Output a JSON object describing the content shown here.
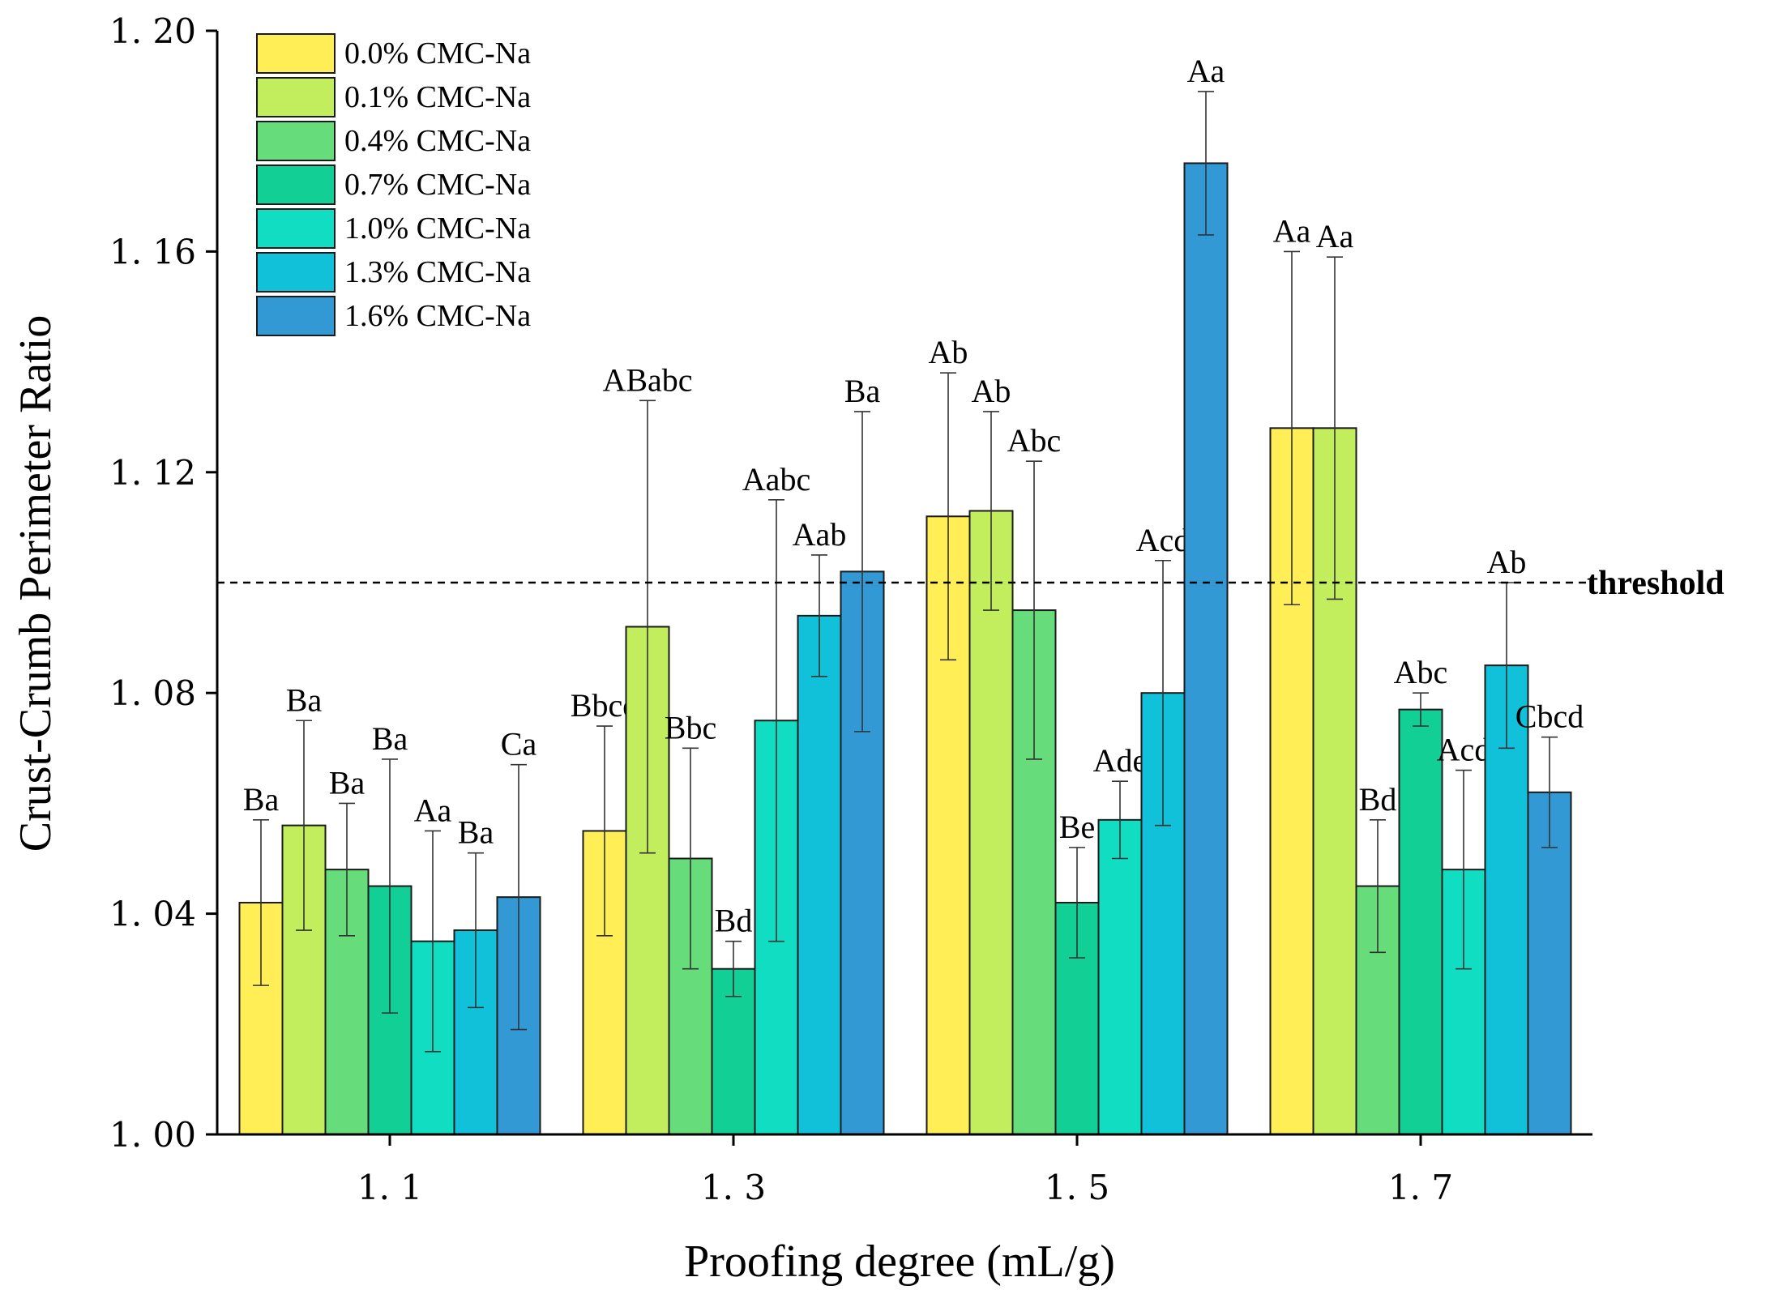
{
  "chart_data": {
    "type": "bar",
    "title": "",
    "xlabel": "Proofing degree (mL/g)",
    "ylabel": "Crust-Crumb Perimeter Ratio",
    "ylim": [
      1.0,
      1.2
    ],
    "yticks": [
      "1. 00",
      "1. 04",
      "1. 08",
      "1. 12",
      "1. 16",
      "1. 20"
    ],
    "ytick_values": [
      1.0,
      1.04,
      1.08,
      1.12,
      1.16,
      1.2
    ],
    "categories": [
      "1. 1",
      "1. 3",
      "1. 5",
      "1. 7"
    ],
    "grid": false,
    "legend_position": "top-left",
    "threshold": {
      "value": 1.1,
      "label": "threshold",
      "color": "#000000"
    },
    "series": [
      {
        "name": "0.0% CMC-Na",
        "color": "#FFEE55",
        "values": [
          1.042,
          1.055,
          1.112,
          1.128
        ],
        "errors": [
          0.015,
          0.019,
          0.026,
          0.032
        ],
        "labels": [
          "Ba",
          "Bbcd",
          "Ab",
          "Aa"
        ]
      },
      {
        "name": "0.1% CMC-Na",
        "color": "#C2EE5E",
        "values": [
          1.056,
          1.092,
          1.113,
          1.128
        ],
        "errors": [
          0.019,
          0.041,
          0.018,
          0.031
        ],
        "labels": [
          "Ba",
          "ABabc",
          "Ab",
          "Aa"
        ]
      },
      {
        "name": "0.4% CMC-Na",
        "color": "#66DD7A",
        "values": [
          1.048,
          1.05,
          1.095,
          1.045
        ],
        "errors": [
          0.012,
          0.02,
          0.027,
          0.012
        ],
        "labels": [
          "Ba",
          "Bbc",
          "Abc",
          "Bd"
        ]
      },
      {
        "name": "0.7% CMC-Na",
        "color": "#11CF95",
        "values": [
          1.045,
          1.03,
          1.042,
          1.077
        ],
        "errors": [
          0.023,
          0.005,
          0.01,
          0.003
        ],
        "labels": [
          "Ba",
          "Bd",
          "Be",
          "Abc"
        ]
      },
      {
        "name": "1.0% CMC-Na",
        "color": "#11DDC3",
        "values": [
          1.035,
          1.075,
          1.057,
          1.048
        ],
        "errors": [
          0.02,
          0.04,
          0.007,
          0.018
        ],
        "labels": [
          "Aa",
          "Aabc",
          "Ade",
          "Acd"
        ]
      },
      {
        "name": "1.3% CMC-Na",
        "color": "#11C0D9",
        "values": [
          1.037,
          1.094,
          1.08,
          1.085
        ],
        "errors": [
          0.014,
          0.011,
          0.024,
          0.015
        ],
        "labels": [
          "Ba",
          "Aab",
          "Acd",
          "Ab"
        ]
      },
      {
        "name": "1.6% CMC-Na",
        "color": "#3399D4",
        "values": [
          1.043,
          1.102,
          1.176,
          1.062
        ],
        "errors": [
          0.024,
          0.029,
          0.013,
          0.01
        ],
        "labels": [
          "Ca",
          "Ba",
          "Aa",
          "Cbcd"
        ]
      }
    ]
  }
}
